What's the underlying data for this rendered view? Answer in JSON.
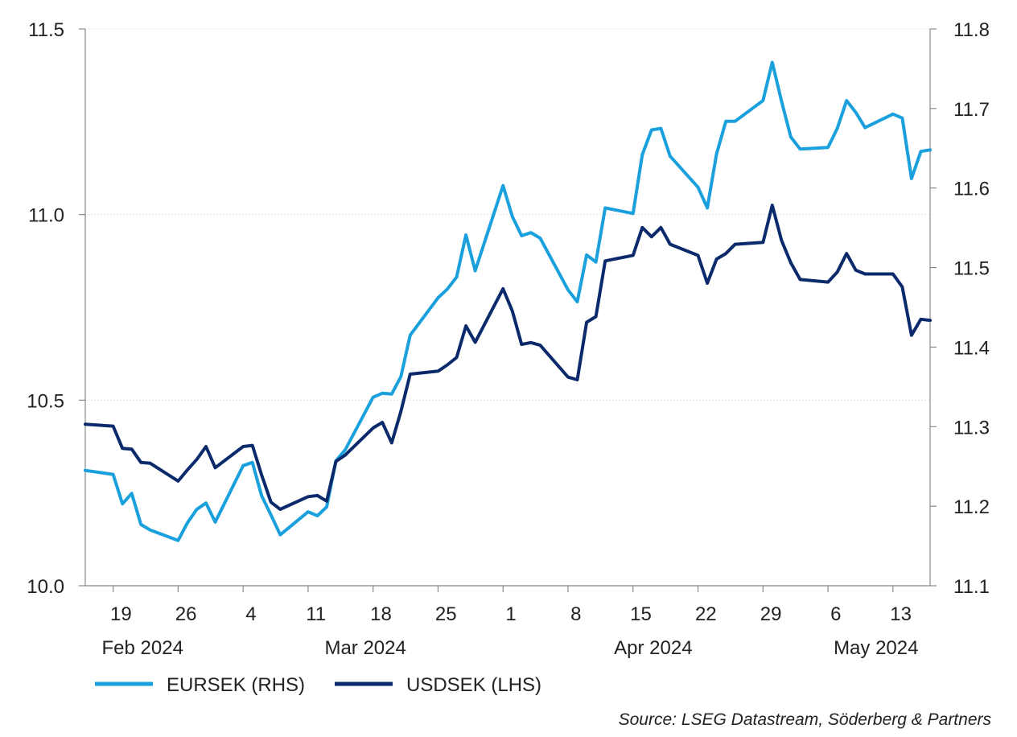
{
  "chart_data": {
    "type": "line",
    "title": "",
    "source": "Source: LSEG Datastream, Söderberg & Partners",
    "legend_position": "bottom-left",
    "grid": "horizontal dotted",
    "colors": {
      "EURSEK": "#1aa0dc",
      "USDSEK": "#0b2a6b",
      "axis": "#888888",
      "grid": "#cccccc"
    },
    "y_left": {
      "label": "",
      "ylim": [
        10.0,
        11.5
      ],
      "ticks": [
        "10.0",
        "10.5",
        "11.0",
        "11.5"
      ]
    },
    "y_right": {
      "label": "",
      "ylim": [
        11.1,
        11.8
      ],
      "ticks": [
        "11.1",
        "11.2",
        "11.3",
        "11.4",
        "11.5",
        "11.6",
        "11.7",
        "11.8"
      ]
    },
    "x_ticks": [
      "19",
      "26",
      "4",
      "11",
      "18",
      "25",
      "1",
      "8",
      "15",
      "22",
      "29",
      "6",
      "13"
    ],
    "months": [
      "Feb 2024",
      "Mar 2024",
      "Apr 2024",
      "May 2024"
    ],
    "x": [
      "2024-02-16",
      "2024-02-19",
      "2024-02-20",
      "2024-02-21",
      "2024-02-22",
      "2024-02-23",
      "2024-02-26",
      "2024-02-27",
      "2024-02-28",
      "2024-02-29",
      "2024-03-01",
      "2024-03-04",
      "2024-03-05",
      "2024-03-06",
      "2024-03-07",
      "2024-03-08",
      "2024-03-11",
      "2024-03-12",
      "2024-03-13",
      "2024-03-14",
      "2024-03-15",
      "2024-03-18",
      "2024-03-19",
      "2024-03-20",
      "2024-03-21",
      "2024-03-22",
      "2024-03-25",
      "2024-03-26",
      "2024-03-27",
      "2024-03-28",
      "2024-03-29",
      "2024-04-01",
      "2024-04-02",
      "2024-04-03",
      "2024-04-04",
      "2024-04-05",
      "2024-04-08",
      "2024-04-09",
      "2024-04-10",
      "2024-04-11",
      "2024-04-12",
      "2024-04-15",
      "2024-04-16",
      "2024-04-17",
      "2024-04-18",
      "2024-04-19",
      "2024-04-22",
      "2024-04-23",
      "2024-04-24",
      "2024-04-25",
      "2024-04-26",
      "2024-04-29",
      "2024-04-30",
      "2024-05-01",
      "2024-05-02",
      "2024-05-03",
      "2024-05-06",
      "2024-05-07",
      "2024-05-08",
      "2024-05-09",
      "2024-05-10",
      "2024-05-13",
      "2024-05-14",
      "2024-05-15",
      "2024-05-16",
      "2024-05-17"
    ],
    "series": [
      {
        "name": "EURSEK (RHS)",
        "axis": "right",
        "color": "#1aa0dc",
        "values": [
          11.245,
          11.24,
          11.203,
          11.216,
          11.177,
          11.17,
          11.157,
          11.179,
          11.196,
          11.204,
          11.18,
          11.251,
          11.255,
          11.213,
          11.189,
          11.164,
          11.193,
          11.188,
          11.199,
          11.257,
          11.271,
          11.337,
          11.342,
          11.341,
          11.363,
          11.415,
          11.462,
          11.473,
          11.488,
          11.541,
          11.496,
          11.603,
          11.564,
          11.54,
          11.544,
          11.537,
          11.472,
          11.457,
          11.516,
          11.507,
          11.575,
          11.568,
          11.642,
          11.673,
          11.675,
          11.64,
          11.601,
          11.575,
          11.643,
          11.684,
          11.684,
          11.71,
          11.758,
          11.709,
          11.664,
          11.649,
          11.651,
          11.675,
          11.71,
          11.695,
          11.676,
          11.693,
          11.688,
          11.612,
          11.646,
          11.648
        ]
      },
      {
        "name": "USDSEK (LHS)",
        "axis": "left",
        "color": "#0b2a6b",
        "values": [
          10.435,
          10.43,
          10.37,
          10.368,
          10.332,
          10.33,
          10.282,
          10.312,
          10.34,
          10.375,
          10.318,
          10.375,
          10.378,
          10.298,
          10.225,
          10.206,
          10.24,
          10.243,
          10.228,
          10.335,
          10.352,
          10.425,
          10.44,
          10.385,
          10.47,
          10.57,
          10.578,
          10.595,
          10.615,
          10.7,
          10.656,
          10.8,
          10.74,
          10.65,
          10.655,
          10.648,
          10.562,
          10.555,
          10.71,
          10.725,
          10.875,
          10.89,
          10.965,
          10.94,
          10.965,
          10.92,
          10.89,
          10.815,
          10.88,
          10.895,
          10.92,
          10.925,
          11.025,
          10.93,
          10.87,
          10.825,
          10.818,
          10.845,
          10.895,
          10.85,
          10.84,
          10.84,
          10.805,
          10.675,
          10.718,
          10.715
        ]
      }
    ]
  }
}
